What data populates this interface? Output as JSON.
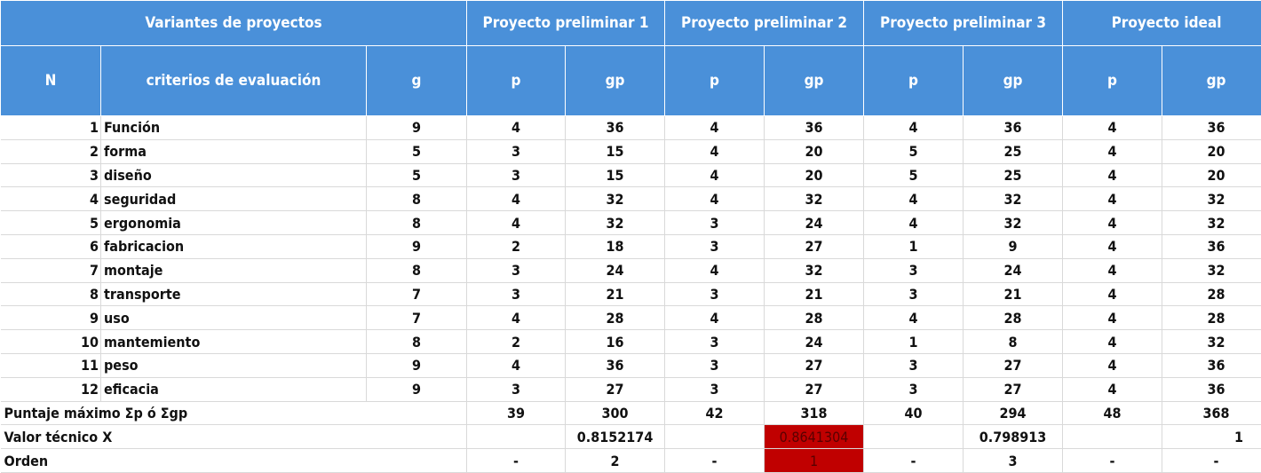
{
  "header": {
    "variants_label": "Variantes de proyectos",
    "project1": "Proyecto preliminar 1",
    "project2": "Proyecto preliminar 2",
    "project3": "Proyecto preliminar 3",
    "ideal": "Proyecto ideal",
    "n": "N",
    "criteria": "criterios de evaluación",
    "g": "g",
    "p": "p",
    "gp": "gp"
  },
  "rows": [
    {
      "n": "1",
      "criterion": "Función",
      "g": "9",
      "p1": "4",
      "gp1": "36",
      "p2": "4",
      "gp2": "36",
      "p3": "4",
      "gp3": "36",
      "pi": "4",
      "gpi": "36"
    },
    {
      "n": "2",
      "criterion": "forma",
      "g": "5",
      "p1": "3",
      "gp1": "15",
      "p2": "4",
      "gp2": "20",
      "p3": "5",
      "gp3": "25",
      "pi": "4",
      "gpi": "20"
    },
    {
      "n": "3",
      "criterion": "diseño",
      "g": "5",
      "p1": "3",
      "gp1": "15",
      "p2": "4",
      "gp2": "20",
      "p3": "5",
      "gp3": "25",
      "pi": "4",
      "gpi": "20"
    },
    {
      "n": "4",
      "criterion": "seguridad",
      "g": "8",
      "p1": "4",
      "gp1": "32",
      "p2": "4",
      "gp2": "32",
      "p3": "4",
      "gp3": "32",
      "pi": "4",
      "gpi": "32"
    },
    {
      "n": "5",
      "criterion": "ergonomia",
      "g": "8",
      "p1": "4",
      "gp1": "32",
      "p2": "3",
      "gp2": "24",
      "p3": "4",
      "gp3": "32",
      "pi": "4",
      "gpi": "32"
    },
    {
      "n": "6",
      "criterion": "fabricacion",
      "g": "9",
      "p1": "2",
      "gp1": "18",
      "p2": "3",
      "gp2": "27",
      "p3": "1",
      "gp3": "9",
      "pi": "4",
      "gpi": "36"
    },
    {
      "n": "7",
      "criterion": "montaje",
      "g": "8",
      "p1": "3",
      "gp1": "24",
      "p2": "4",
      "gp2": "32",
      "p3": "3",
      "gp3": "24",
      "pi": "4",
      "gpi": "32"
    },
    {
      "n": "8",
      "criterion": "transporte",
      "g": "7",
      "p1": "3",
      "gp1": "21",
      "p2": "3",
      "gp2": "21",
      "p3": "3",
      "gp3": "21",
      "pi": "4",
      "gpi": "28"
    },
    {
      "n": "9",
      "criterion": "uso",
      "g": "7",
      "p1": "4",
      "gp1": "28",
      "p2": "4",
      "gp2": "28",
      "p3": "4",
      "gp3": "28",
      "pi": "4",
      "gpi": "28"
    },
    {
      "n": "10",
      "criterion": "mantemiento",
      "g": "8",
      "p1": "2",
      "gp1": "16",
      "p2": "3",
      "gp2": "24",
      "p3": "1",
      "gp3": "8",
      "pi": "4",
      "gpi": "32"
    },
    {
      "n": "11",
      "criterion": "peso",
      "g": "9",
      "p1": "4",
      "gp1": "36",
      "p2": "3",
      "gp2": "27",
      "p3": "3",
      "gp3": "27",
      "pi": "4",
      "gpi": "36"
    },
    {
      "n": "12",
      "criterion": "eficacia",
      "g": "9",
      "p1": "3",
      "gp1": "27",
      "p2": "3",
      "gp2": "27",
      "p3": "3",
      "gp3": "27",
      "pi": "4",
      "gpi": "36"
    }
  ],
  "totals": {
    "label": "Puntaje máximo Σp ó Σgp",
    "p1": "39",
    "gp1": "300",
    "p2": "42",
    "gp2": "318",
    "p3": "40",
    "gp3": "294",
    "pi": "48",
    "gpi": "368"
  },
  "technical": {
    "label": "Valor técnico X",
    "gp1": "0.8152174",
    "gp2": "0.8641304",
    "gp3": "0.798913",
    "gpi": "1"
  },
  "order": {
    "label": "Orden",
    "p1": "-",
    "gp1": "2",
    "p2": "-",
    "gp2": "1",
    "p3": "-",
    "gp3": "3",
    "pi": "-",
    "gpi": "-"
  },
  "colors": {
    "header_bg": "#4a90d9",
    "highlight": "#c00000"
  }
}
